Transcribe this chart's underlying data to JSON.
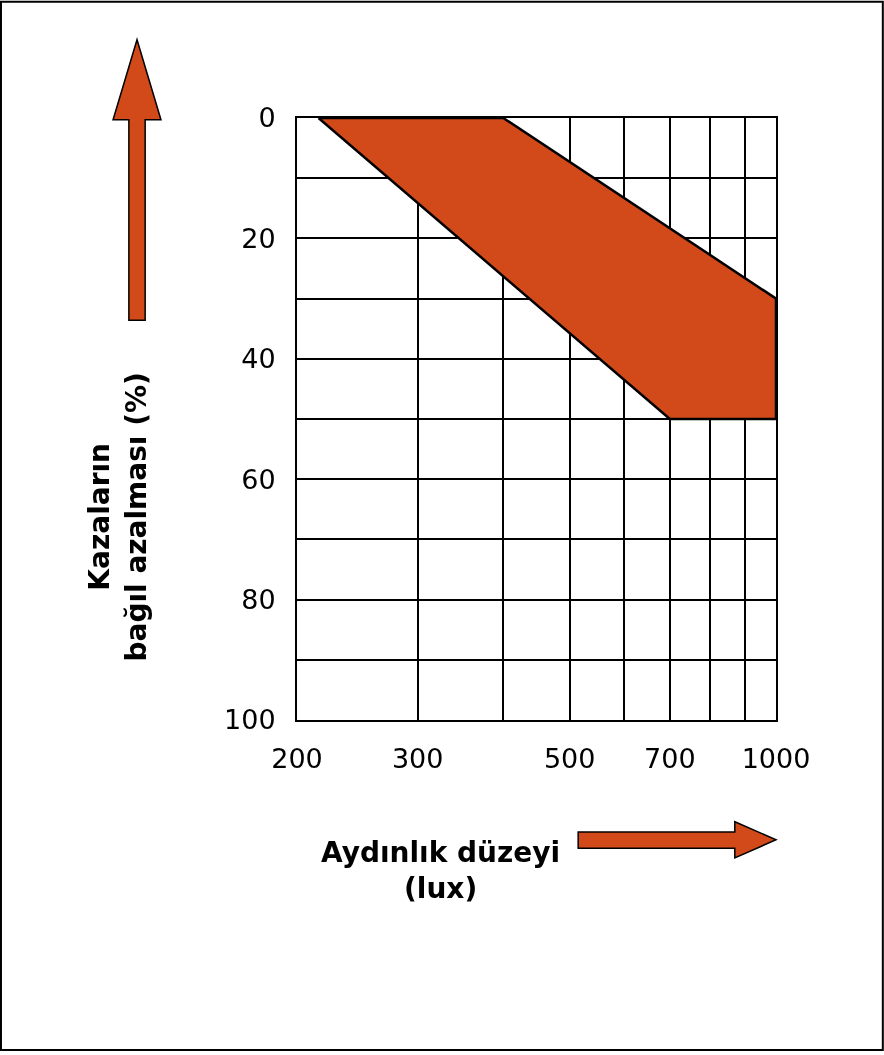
{
  "chart_data": {
    "type": "area",
    "xlabel": "Aydınlık düzeyi\n(lux)",
    "ylabel": "Kazaların\nbağıl azalması (%)",
    "log": "x",
    "grid": true,
    "xlim": [
      200,
      1000
    ],
    "ylim": [
      100,
      0
    ],
    "xticks": [
      200,
      300,
      {
        "value": 400,
        "label": null
      },
      500,
      {
        "value": 600,
        "label": null
      },
      700,
      {
        "value": 800,
        "label": null
      },
      {
        "value": 900,
        "label": null
      },
      1000
    ],
    "yticks": [
      0,
      {
        "value": 10,
        "label": null
      },
      20,
      {
        "value": 30,
        "label": null
      },
      40,
      {
        "value": 50,
        "label": null
      },
      60,
      {
        "value": 70,
        "label": null
      },
      80,
      {
        "value": 90,
        "label": null
      },
      100
    ],
    "series": [
      {
        "color": "#d34a1a",
        "x": [
          215,
          400,
          1000,
          1000,
          700,
          215
        ],
        "values": [
          0,
          0,
          30,
          50,
          50,
          0
        ]
      }
    ]
  }
}
